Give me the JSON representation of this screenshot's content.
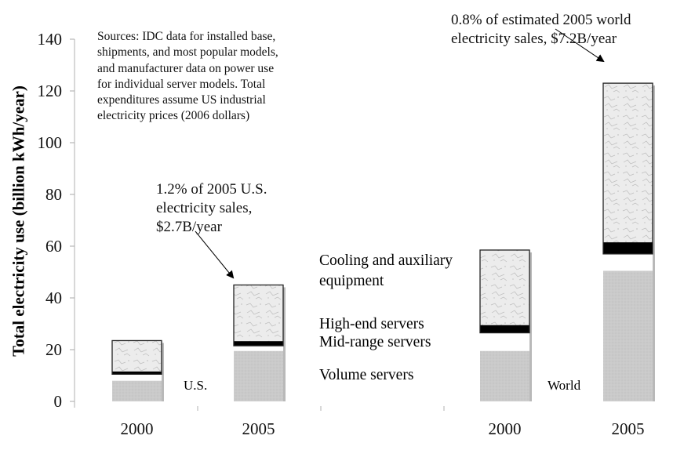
{
  "chart_data": {
    "type": "bar",
    "stacked": true,
    "title": "",
    "xlabel": "",
    "ylabel": "Total electricity use (billion kWh/year)",
    "ylim": [
      0,
      140
    ],
    "yticks": [
      0,
      20,
      40,
      60,
      80,
      100,
      120,
      140
    ],
    "grid": false,
    "groups": [
      "U.S.",
      "World"
    ],
    "categories": [
      "2000",
      "2005",
      "2000",
      "2005"
    ],
    "category_groups": [
      "U.S.",
      "U.S.",
      "World",
      "World"
    ],
    "series": [
      {
        "name": "Volume servers",
        "color": "#c8c8c8",
        "values": [
          8.0,
          19.5,
          19.5,
          50.5
        ]
      },
      {
        "name": "Mid-range servers",
        "color": "#ffffff",
        "values": [
          2.5,
          2.0,
          7.0,
          6.5
        ]
      },
      {
        "name": "High-end servers",
        "color": "#000000",
        "values": [
          1.1,
          1.8,
          3.0,
          4.5
        ]
      },
      {
        "name": "Cooling and auxiliary equipment",
        "color": "#e8e8e8",
        "values": [
          11.9,
          21.7,
          29.0,
          61.5
        ]
      }
    ],
    "legend": {
      "placement": "center",
      "items": [
        "Cooling and auxiliary\nequipment",
        "High-end servers",
        "Mid-range servers",
        "Volume servers"
      ]
    },
    "annotations": {
      "sources": "Sources:  IDC data for installed base,\nshipments, and most popular models,\nand manufacturer data on power use\nfor individual server models.  Total\nexpenditures assume US industrial\nelectricity prices (2006 dollars)",
      "us_note": "1.2% of 2005 U.S.\nelectricity sales,\n$2.7B/year",
      "world_note": "0.8% of estimated 2005 world\nelectricity sales, $7.2B/year"
    }
  }
}
